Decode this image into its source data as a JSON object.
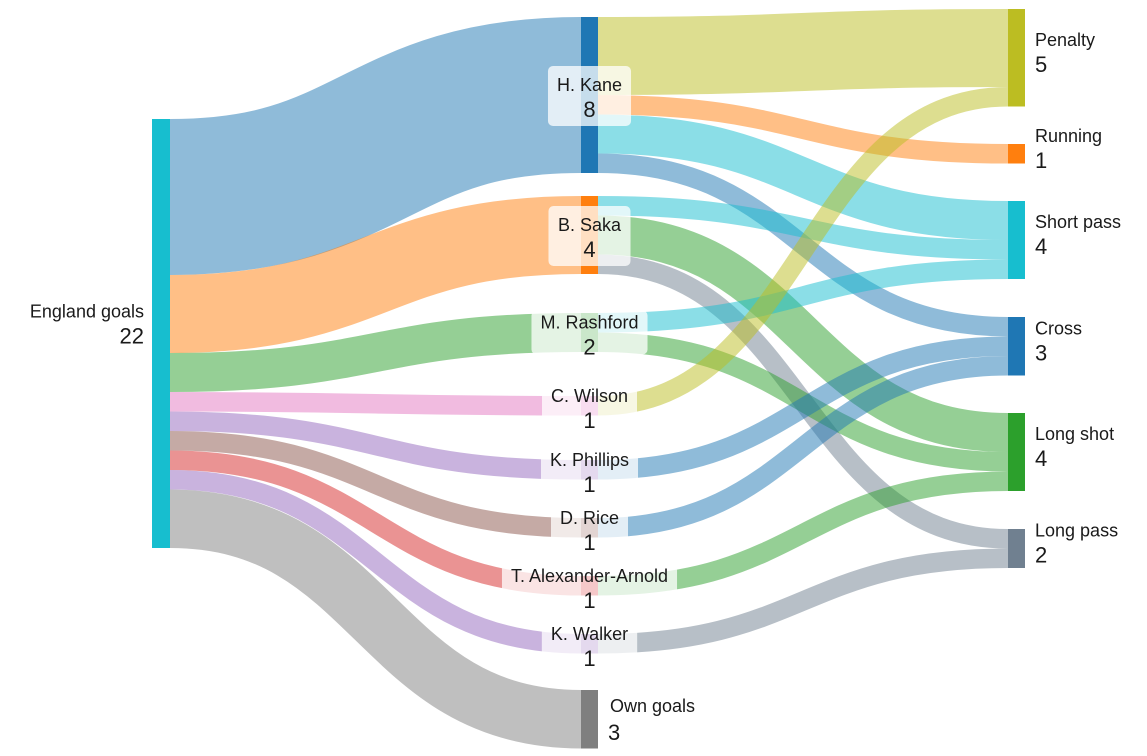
{
  "chart_data": {
    "type": "sankey",
    "title": "",
    "unit": "goals",
    "nodes": [
      {
        "id": "england",
        "label": "England goals",
        "value": 22,
        "color": "#17becf",
        "column": 0
      },
      {
        "id": "kane",
        "label": "H. Kane",
        "value": 8,
        "color": "#1f77b4",
        "column": 1
      },
      {
        "id": "saka",
        "label": "B. Saka",
        "value": 4,
        "color": "#ff7f0e",
        "column": 1
      },
      {
        "id": "rashford",
        "label": "M. Rashford",
        "value": 2,
        "color": "#2ca02c",
        "column": 1
      },
      {
        "id": "wilson",
        "label": "C. Wilson",
        "value": 1,
        "color": "#e377c2",
        "column": 1
      },
      {
        "id": "phillips",
        "label": "K. Phillips",
        "value": 1,
        "color": "#9467bd",
        "column": 1
      },
      {
        "id": "rice",
        "label": "D. Rice",
        "value": 1,
        "color": "#8c564b",
        "column": 1
      },
      {
        "id": "taa",
        "label": "T. Alexander-Arnold",
        "value": 1,
        "color": "#d62728",
        "column": 1
      },
      {
        "id": "walker",
        "label": "K. Walker",
        "value": 1,
        "color": "#9467bd",
        "column": 1
      },
      {
        "id": "own",
        "label": "Own goals",
        "value": 3,
        "color": "#7f7f7f",
        "column": 1
      },
      {
        "id": "penalty",
        "label": "Penalty",
        "value": 5,
        "color": "#bcbd22",
        "column": 2
      },
      {
        "id": "running",
        "label": "Running",
        "value": 1,
        "color": "#ff7f0e",
        "column": 2
      },
      {
        "id": "shortpass",
        "label": "Short pass",
        "value": 4,
        "color": "#17becf",
        "column": 2
      },
      {
        "id": "cross",
        "label": "Cross",
        "value": 3,
        "color": "#1f77b4",
        "column": 2
      },
      {
        "id": "longshot",
        "label": "Long shot",
        "value": 4,
        "color": "#2ca02c",
        "column": 2
      },
      {
        "id": "longpass",
        "label": "Long pass",
        "value": 2,
        "color": "#708090",
        "column": 2
      }
    ],
    "links": [
      {
        "source": "england",
        "target": "kane",
        "value": 8,
        "color": "#1f77b4"
      },
      {
        "source": "england",
        "target": "saka",
        "value": 4,
        "color": "#ff7f0e"
      },
      {
        "source": "england",
        "target": "rashford",
        "value": 2,
        "color": "#2ca02c"
      },
      {
        "source": "england",
        "target": "wilson",
        "value": 1,
        "color": "#e377c2"
      },
      {
        "source": "england",
        "target": "phillips",
        "value": 1,
        "color": "#9467bd"
      },
      {
        "source": "england",
        "target": "rice",
        "value": 1,
        "color": "#8c564b"
      },
      {
        "source": "england",
        "target": "taa",
        "value": 1,
        "color": "#d62728"
      },
      {
        "source": "england",
        "target": "walker",
        "value": 1,
        "color": "#9467bd"
      },
      {
        "source": "england",
        "target": "own",
        "value": 3,
        "color": "#7f7f7f"
      },
      {
        "source": "kane",
        "target": "penalty",
        "value": 4,
        "color": "#bcbd22"
      },
      {
        "source": "kane",
        "target": "running",
        "value": 1,
        "color": "#ff7f0e"
      },
      {
        "source": "kane",
        "target": "shortpass",
        "value": 2,
        "color": "#17becf"
      },
      {
        "source": "kane",
        "target": "cross",
        "value": 1,
        "color": "#1f77b4"
      },
      {
        "source": "saka",
        "target": "shortpass",
        "value": 1,
        "color": "#17becf"
      },
      {
        "source": "saka",
        "target": "longshot",
        "value": 2,
        "color": "#2ca02c"
      },
      {
        "source": "saka",
        "target": "longpass",
        "value": 1,
        "color": "#708090"
      },
      {
        "source": "rashford",
        "target": "shortpass",
        "value": 1,
        "color": "#17becf"
      },
      {
        "source": "rashford",
        "target": "longshot",
        "value": 1,
        "color": "#2ca02c"
      },
      {
        "source": "wilson",
        "target": "penalty",
        "value": 1,
        "color": "#bcbd22"
      },
      {
        "source": "phillips",
        "target": "cross",
        "value": 1,
        "color": "#1f77b4"
      },
      {
        "source": "rice",
        "target": "cross",
        "value": 1,
        "color": "#1f77b4"
      },
      {
        "source": "taa",
        "target": "longshot",
        "value": 1,
        "color": "#2ca02c"
      },
      {
        "source": "walker",
        "target": "longpass",
        "value": 1,
        "color": "#708090"
      }
    ]
  }
}
